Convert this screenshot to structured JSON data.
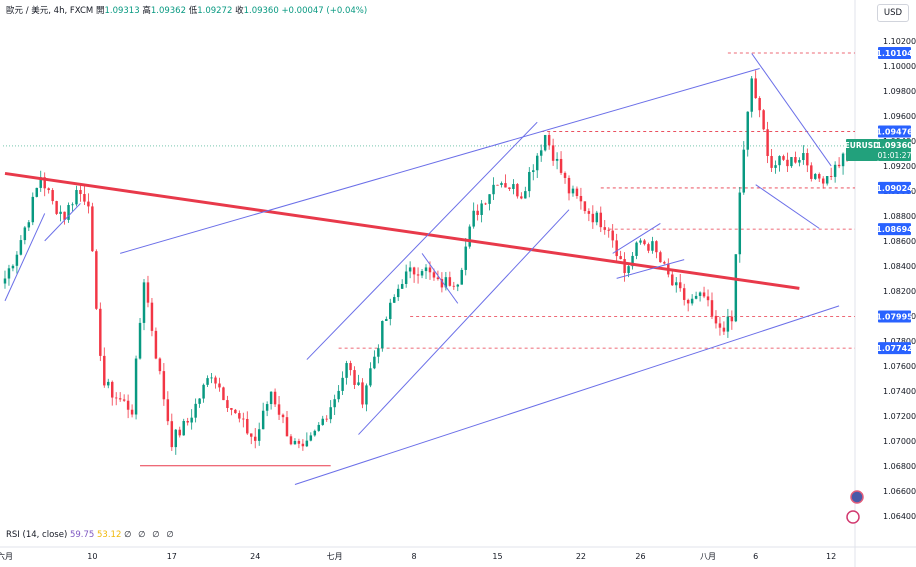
{
  "header": {
    "symbol": "歐元 / 美元, 4h, FXCM",
    "open_label": "開",
    "open": "1.09313",
    "high_label": "高",
    "high": "1.09362",
    "low_label": "低",
    "low": "1.09272",
    "close_label": "收",
    "close": "1.09360",
    "change": "+0.00047 (+0.04%)"
  },
  "currency_button": "USD",
  "rsi": {
    "label": "RSI (14, close)",
    "value1": "59.75",
    "value2": "53.12",
    "extras": "∅ ∅ ∅ ∅"
  },
  "colors": {
    "up": "#089981",
    "down": "#f23645",
    "trend_red": "#e8394a",
    "channel": "#6b6fe8",
    "level": "#e8394a",
    "last_price": "#22a17c",
    "level_tag": "#2962ff"
  },
  "chart_data": {
    "type": "candlestick",
    "symbol": "EURUSD",
    "timeframe": "4h",
    "y_axis": {
      "ticks": [
        "1.10200",
        "1.10000",
        "1.09800",
        "1.09600",
        "1.09400",
        "1.09200",
        "1.09000",
        "1.08800",
        "1.08600",
        "1.08400",
        "1.08200",
        "1.08000",
        "1.07800",
        "1.07600",
        "1.07400",
        "1.07200",
        "1.07000",
        "1.06800",
        "1.06600",
        "1.06400"
      ],
      "range": [
        1.0631,
        1.1032
      ]
    },
    "x_axis": {
      "ticks": [
        {
          "label": "六月",
          "i": 0
        },
        {
          "label": "10",
          "i": 22
        },
        {
          "label": "17",
          "i": 42
        },
        {
          "label": "24",
          "i": 63
        },
        {
          "label": "七月",
          "i": 83
        },
        {
          "label": "8",
          "i": 103
        },
        {
          "label": "15",
          "i": 124
        },
        {
          "label": "22",
          "i": 145
        },
        {
          "label": "26",
          "i": 160
        },
        {
          "label": "八月",
          "i": 177
        },
        {
          "label": "6",
          "i": 189
        },
        {
          "label": "12",
          "i": 208
        }
      ],
      "count": 214
    },
    "anchors": [
      [
        0,
        1.083
      ],
      [
        3,
        1.0852
      ],
      [
        6,
        1.088
      ],
      [
        9,
        1.0912
      ],
      [
        12,
        1.089
      ],
      [
        15,
        1.088
      ],
      [
        18,
        1.09
      ],
      [
        21,
        1.0893
      ],
      [
        23,
        1.08
      ],
      [
        25,
        1.0745
      ],
      [
        28,
        1.0735
      ],
      [
        32,
        1.0725
      ],
      [
        35,
        1.083
      ],
      [
        38,
        1.077
      ],
      [
        42,
        1.07
      ],
      [
        46,
        1.0715
      ],
      [
        52,
        1.0755
      ],
      [
        58,
        1.072
      ],
      [
        63,
        1.07
      ],
      [
        67,
        1.074
      ],
      [
        72,
        1.07
      ],
      [
        75,
        1.069
      ],
      [
        78,
        1.0705
      ],
      [
        83,
        1.0735
      ],
      [
        86,
        1.076
      ],
      [
        90,
        1.0735
      ],
      [
        95,
        1.079
      ],
      [
        100,
        1.083
      ],
      [
        105,
        1.084
      ],
      [
        109,
        1.0825
      ],
      [
        114,
        1.083
      ],
      [
        118,
        1.088
      ],
      [
        124,
        1.091
      ],
      [
        130,
        1.0898
      ],
      [
        136,
        1.0945
      ],
      [
        142,
        1.09
      ],
      [
        148,
        1.088
      ],
      [
        152,
        1.0872
      ],
      [
        156,
        1.0835
      ],
      [
        160,
        1.086
      ],
      [
        163,
        1.0855
      ],
      [
        168,
        1.0825
      ],
      [
        172,
        1.081
      ],
      [
        176,
        1.0815
      ],
      [
        179,
        1.079
      ],
      [
        183,
        1.0795
      ],
      [
        185,
        1.09
      ],
      [
        188,
        1.099
      ],
      [
        190,
        1.096
      ],
      [
        193,
        1.092
      ],
      [
        198,
        1.0925
      ],
      [
        201,
        1.093
      ],
      [
        204,
        1.0908
      ],
      [
        208,
        1.0915
      ],
      [
        211,
        1.0927
      ],
      [
        213,
        1.0936
      ]
    ],
    "horizontal_levels": [
      {
        "value": "1.10104",
        "price": 1.10104,
        "from_i": 182
      },
      {
        "value": "1.09476",
        "price": 1.09476,
        "from_i": 135
      },
      {
        "value": "1.09024",
        "price": 1.09024,
        "from_i": 150
      },
      {
        "value": "1.08694",
        "price": 1.08694,
        "from_i": 152
      },
      {
        "value": "1.07995",
        "price": 1.07995,
        "from_i": 102
      },
      {
        "value": "1.07742",
        "price": 1.07742,
        "from_i": 84
      }
    ],
    "last_price": {
      "symbol": "EURUSD",
      "value": "1.09360",
      "price": 1.0936,
      "countdown": "01:01:27"
    },
    "trendlines": [
      {
        "kind": "red",
        "from": [
          0,
          1.0914
        ],
        "to": [
          200,
          1.0822
        ]
      },
      {
        "kind": "channel",
        "from": [
          29,
          1.085
        ],
        "to": [
          190,
          1.0998
        ]
      },
      {
        "kind": "channel",
        "from": [
          73,
          1.0665
        ],
        "to": [
          210,
          1.0808
        ]
      },
      {
        "kind": "channel",
        "from": [
          0,
          1.0812
        ],
        "to": [
          10,
          1.0882
        ]
      },
      {
        "kind": "channel",
        "from": [
          10,
          1.086
        ],
        "to": [
          19,
          1.089
        ]
      },
      {
        "kind": "channel",
        "from": [
          76,
          1.0765
        ],
        "to": [
          134,
          1.0955
        ]
      },
      {
        "kind": "channel",
        "from": [
          89,
          1.0705
        ],
        "to": [
          142,
          1.0885
        ]
      },
      {
        "kind": "channel",
        "from": [
          105,
          1.085
        ],
        "to": [
          114,
          1.081
        ]
      },
      {
        "kind": "channel",
        "from": [
          153,
          1.085
        ],
        "to": [
          165,
          1.0874
        ]
      },
      {
        "kind": "channel",
        "from": [
          154,
          1.083
        ],
        "to": [
          171,
          1.0845
        ]
      },
      {
        "kind": "channel",
        "from": [
          188,
          1.101
        ],
        "to": [
          208,
          1.092
        ]
      },
      {
        "kind": "channel",
        "from": [
          189,
          1.0905
        ],
        "to": [
          205,
          1.087
        ]
      },
      {
        "kind": "flat_red",
        "from": [
          34,
          1.068
        ],
        "to": [
          82,
          1.068
        ]
      }
    ]
  }
}
